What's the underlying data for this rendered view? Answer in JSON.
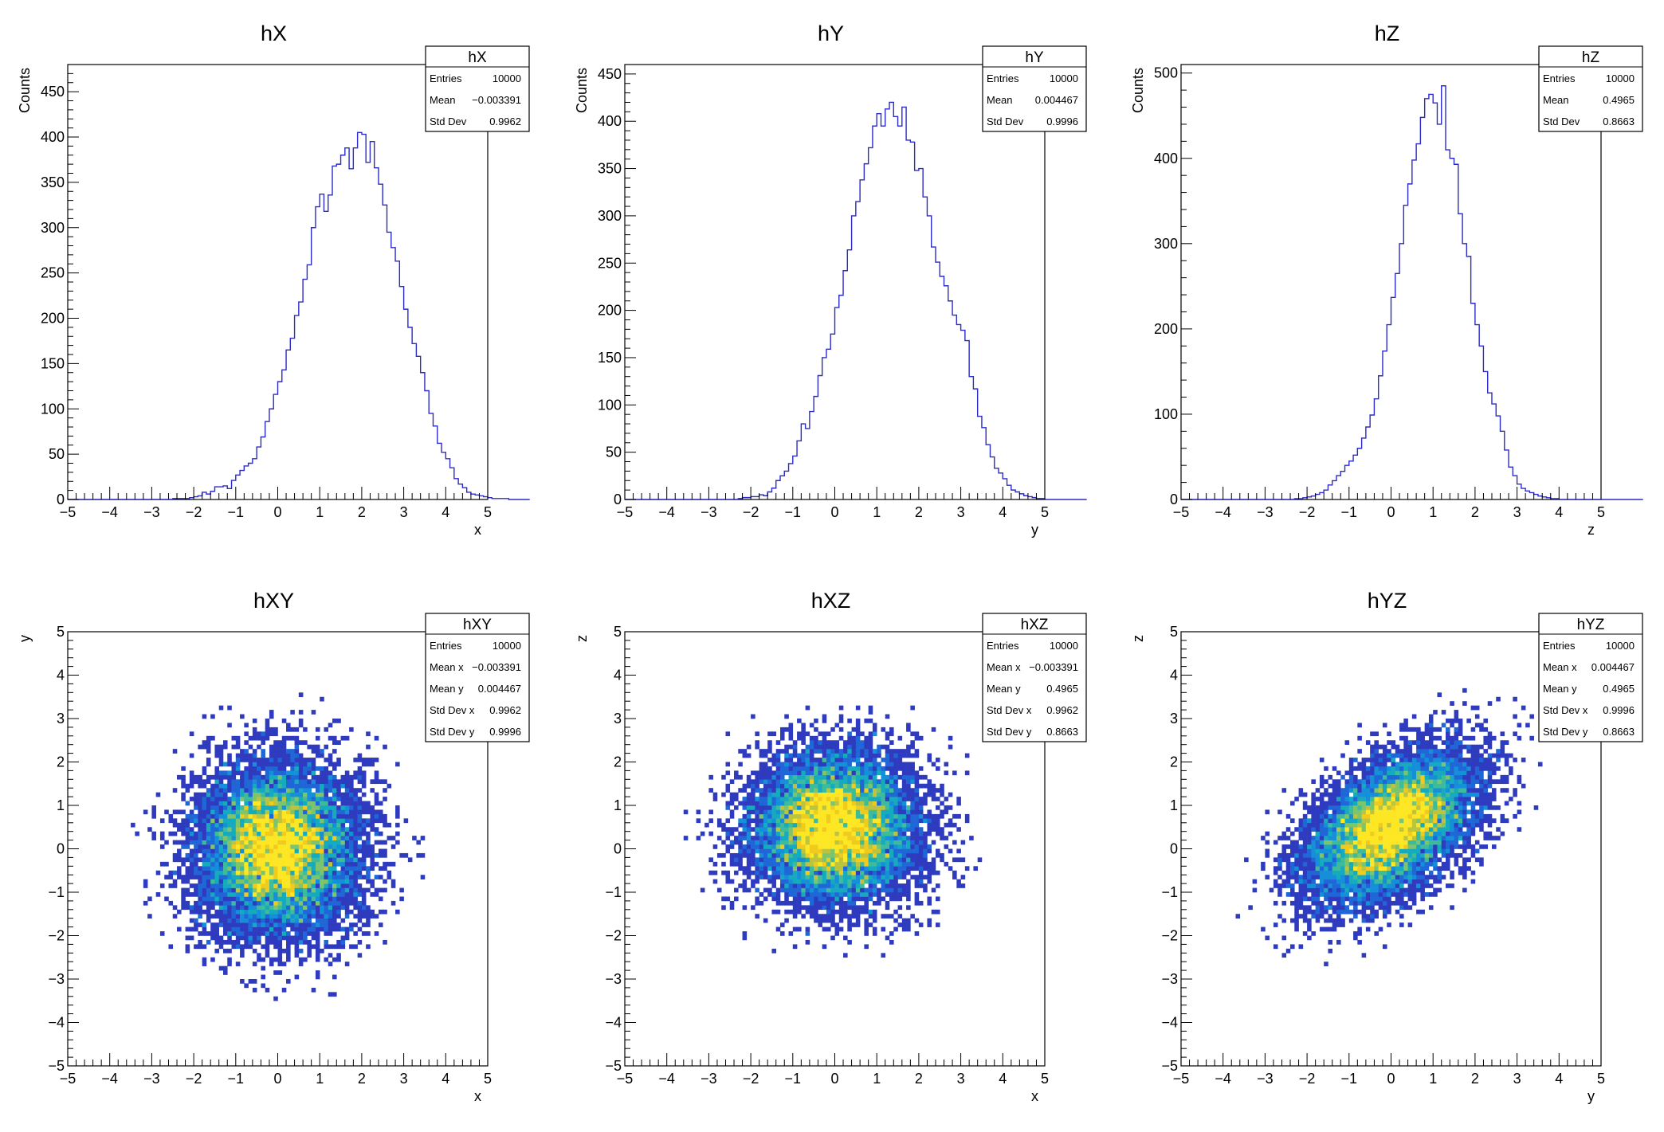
{
  "chart_data": [
    {
      "id": "hX",
      "type": "histogram",
      "title": "hX",
      "xlabel": "x",
      "ylabel": "Counts",
      "xlim": [
        -5,
        5
      ],
      "ylim": [
        0,
        480
      ],
      "yticks": [
        0,
        50,
        100,
        150,
        200,
        250,
        300,
        350,
        400,
        450
      ],
      "bin_edges_start": -5,
      "bin_width": 0.1,
      "values": [
        0,
        0,
        0,
        0,
        0,
        0,
        0,
        0,
        0,
        0,
        0,
        0,
        0,
        0,
        0,
        0,
        0,
        0,
        0,
        0,
        0,
        0,
        0,
        0,
        0,
        1,
        1,
        1,
        1,
        2,
        3,
        4,
        8,
        6,
        9,
        14,
        14,
        15,
        12,
        21,
        27,
        32,
        37,
        40,
        45,
        58,
        69,
        86,
        100,
        116,
        130,
        143,
        165,
        178,
        203,
        218,
        243,
        259,
        300,
        323,
        337,
        318,
        336,
        368,
        370,
        380,
        388,
        365,
        388,
        405,
        403,
        372,
        395,
        366,
        348,
        325,
        295,
        278,
        263,
        235,
        210,
        190,
        172,
        158,
        140,
        120,
        95,
        81,
        62,
        52,
        45,
        35,
        23,
        17,
        13,
        8,
        6,
        5,
        4,
        3,
        2,
        1,
        1,
        1,
        1,
        0,
        0,
        0,
        0,
        0
      ],
      "stats": {
        "name": "hX",
        "rows": [
          {
            "label": "Entries",
            "value": "10000"
          },
          {
            "label": "Mean",
            "value": "−0.003391"
          },
          {
            "label": "Std Dev",
            "value": "0.9962"
          }
        ]
      }
    },
    {
      "id": "hY",
      "type": "histogram",
      "title": "hY",
      "xlabel": "y",
      "ylabel": "Counts",
      "xlim": [
        -5,
        5
      ],
      "ylim": [
        0,
        460
      ],
      "yticks": [
        0,
        50,
        100,
        150,
        200,
        250,
        300,
        350,
        400,
        450
      ],
      "bin_edges_start": -5,
      "bin_width": 0.1,
      "values": [
        0,
        0,
        0,
        0,
        0,
        0,
        0,
        0,
        0,
        0,
        0,
        0,
        0,
        0,
        0,
        0,
        0,
        0,
        0,
        0,
        0,
        0,
        0,
        0,
        0,
        0,
        0,
        1,
        2,
        2,
        3,
        3,
        5,
        4,
        8,
        12,
        20,
        25,
        30,
        38,
        46,
        62,
        80,
        75,
        93,
        109,
        131,
        150,
        159,
        175,
        203,
        216,
        242,
        264,
        300,
        315,
        338,
        355,
        372,
        395,
        408,
        395,
        413,
        420,
        405,
        395,
        415,
        380,
        378,
        348,
        350,
        320,
        300,
        267,
        251,
        236,
        226,
        210,
        195,
        185,
        179,
        168,
        130,
        117,
        88,
        76,
        58,
        45,
        33,
        28,
        22,
        15,
        10,
        8,
        6,
        4,
        3,
        2,
        1,
        1,
        0,
        0,
        0,
        0,
        0,
        0,
        0,
        0,
        0,
        0
      ],
      "stats": {
        "name": "hY",
        "rows": [
          {
            "label": "Entries",
            "value": "10000"
          },
          {
            "label": "Mean",
            "value": "0.004467"
          },
          {
            "label": "Std Dev",
            "value": "0.9996"
          }
        ]
      }
    },
    {
      "id": "hZ",
      "type": "histogram",
      "title": "hZ",
      "xlabel": "z",
      "ylabel": "Counts",
      "xlim": [
        -5,
        5
      ],
      "ylim": [
        0,
        510
      ],
      "yticks": [
        0,
        100,
        200,
        300,
        400,
        500
      ],
      "bin_edges_start": -5,
      "bin_width": 0.1,
      "values": [
        0,
        0,
        0,
        0,
        0,
        0,
        0,
        0,
        0,
        0,
        0,
        0,
        0,
        0,
        0,
        0,
        0,
        0,
        0,
        0,
        0,
        0,
        0,
        0,
        0,
        0,
        0,
        1,
        1,
        2,
        3,
        4,
        6,
        8,
        11,
        17,
        22,
        28,
        33,
        40,
        45,
        52,
        60,
        72,
        85,
        99,
        118,
        145,
        174,
        205,
        237,
        265,
        300,
        345,
        370,
        398,
        417,
        448,
        470,
        475,
        465,
        440,
        485,
        410,
        400,
        393,
        335,
        300,
        285,
        230,
        205,
        180,
        150,
        125,
        112,
        98,
        80,
        58,
        38,
        28,
        18,
        13,
        10,
        8,
        6,
        4,
        3,
        2,
        1,
        1,
        0,
        0,
        0,
        0,
        0,
        0,
        0,
        0,
        0,
        0,
        0,
        0,
        0,
        0,
        0,
        0,
        0,
        0,
        0,
        0
      ],
      "stats": {
        "name": "hZ",
        "rows": [
          {
            "label": "Entries",
            "value": "10000"
          },
          {
            "label": "Mean",
            "value": "0.4965"
          },
          {
            "label": "Std Dev",
            "value": "0.8663"
          }
        ]
      }
    },
    {
      "id": "hXY",
      "type": "heatmap",
      "title": "hXY",
      "xlabel": "x",
      "ylabel": "y",
      "xlim": [
        -5,
        5
      ],
      "ylim": [
        -5,
        5
      ],
      "yticks": [
        -5,
        -4,
        -3,
        -2,
        -1,
        0,
        1,
        2,
        3,
        4,
        5
      ],
      "cell_size": 0.1,
      "center_x": 0.0,
      "center_y": 0.0,
      "sigma_x": 0.9962,
      "sigma_y": 0.9996,
      "rho": 0.0,
      "peak_count": 14,
      "seed": 11,
      "stats": {
        "name": "hXY",
        "rows": [
          {
            "label": "Entries",
            "value": "10000"
          },
          {
            "label": "Mean x",
            "value": "−0.003391"
          },
          {
            "label": "Mean y",
            "value": "0.004467"
          },
          {
            "label": "Std Dev x",
            "value": "0.9962"
          },
          {
            "label": "Std Dev y",
            "value": "0.9996"
          }
        ]
      }
    },
    {
      "id": "hXZ",
      "type": "heatmap",
      "title": "hXZ",
      "xlabel": "x",
      "ylabel": "z",
      "xlim": [
        -5,
        5
      ],
      "ylim": [
        -5,
        5
      ],
      "yticks": [
        -5,
        -4,
        -3,
        -2,
        -1,
        0,
        1,
        2,
        3,
        4,
        5
      ],
      "cell_size": 0.1,
      "center_x": 0.0,
      "center_y": 0.5,
      "sigma_x": 0.9962,
      "sigma_y": 0.8663,
      "rho": 0.0,
      "peak_count": 15,
      "seed": 23,
      "stats": {
        "name": "hXZ",
        "rows": [
          {
            "label": "Entries",
            "value": "10000"
          },
          {
            "label": "Mean x",
            "value": "−0.003391"
          },
          {
            "label": "Mean y",
            "value": "0.4965"
          },
          {
            "label": "Std Dev x",
            "value": "0.9962"
          },
          {
            "label": "Std Dev y",
            "value": "0.8663"
          }
        ]
      }
    },
    {
      "id": "hYZ",
      "type": "heatmap",
      "title": "hYZ",
      "xlabel": "y",
      "ylabel": "z",
      "xlim": [
        -5,
        5
      ],
      "ylim": [
        -5,
        5
      ],
      "yticks": [
        -5,
        -4,
        -3,
        -2,
        -1,
        0,
        1,
        2,
        3,
        4,
        5
      ],
      "cell_size": 0.1,
      "center_x": 0.0,
      "center_y": 0.5,
      "sigma_x": 0.9996,
      "sigma_y": 0.8663,
      "rho": 0.5,
      "peak_count": 17,
      "seed": 37,
      "stats": {
        "name": "hYZ",
        "rows": [
          {
            "label": "Entries",
            "value": "10000"
          },
          {
            "label": "Mean x",
            "value": "0.004467"
          },
          {
            "label": "Mean y",
            "value": "0.4965"
          },
          {
            "label": "Std Dev x",
            "value": "0.9996"
          },
          {
            "label": "Std Dev y",
            "value": "0.8663"
          }
        ]
      }
    }
  ],
  "colors": {
    "histogram_line": "#2b2bc8",
    "axis": "#000000",
    "palette": [
      "#2f3bbf",
      "#1f67d6",
      "#1590d8",
      "#16aabf",
      "#3dbb9a",
      "#7cc46d",
      "#bcc43f",
      "#f0cb1e",
      "#fde724"
    ]
  }
}
